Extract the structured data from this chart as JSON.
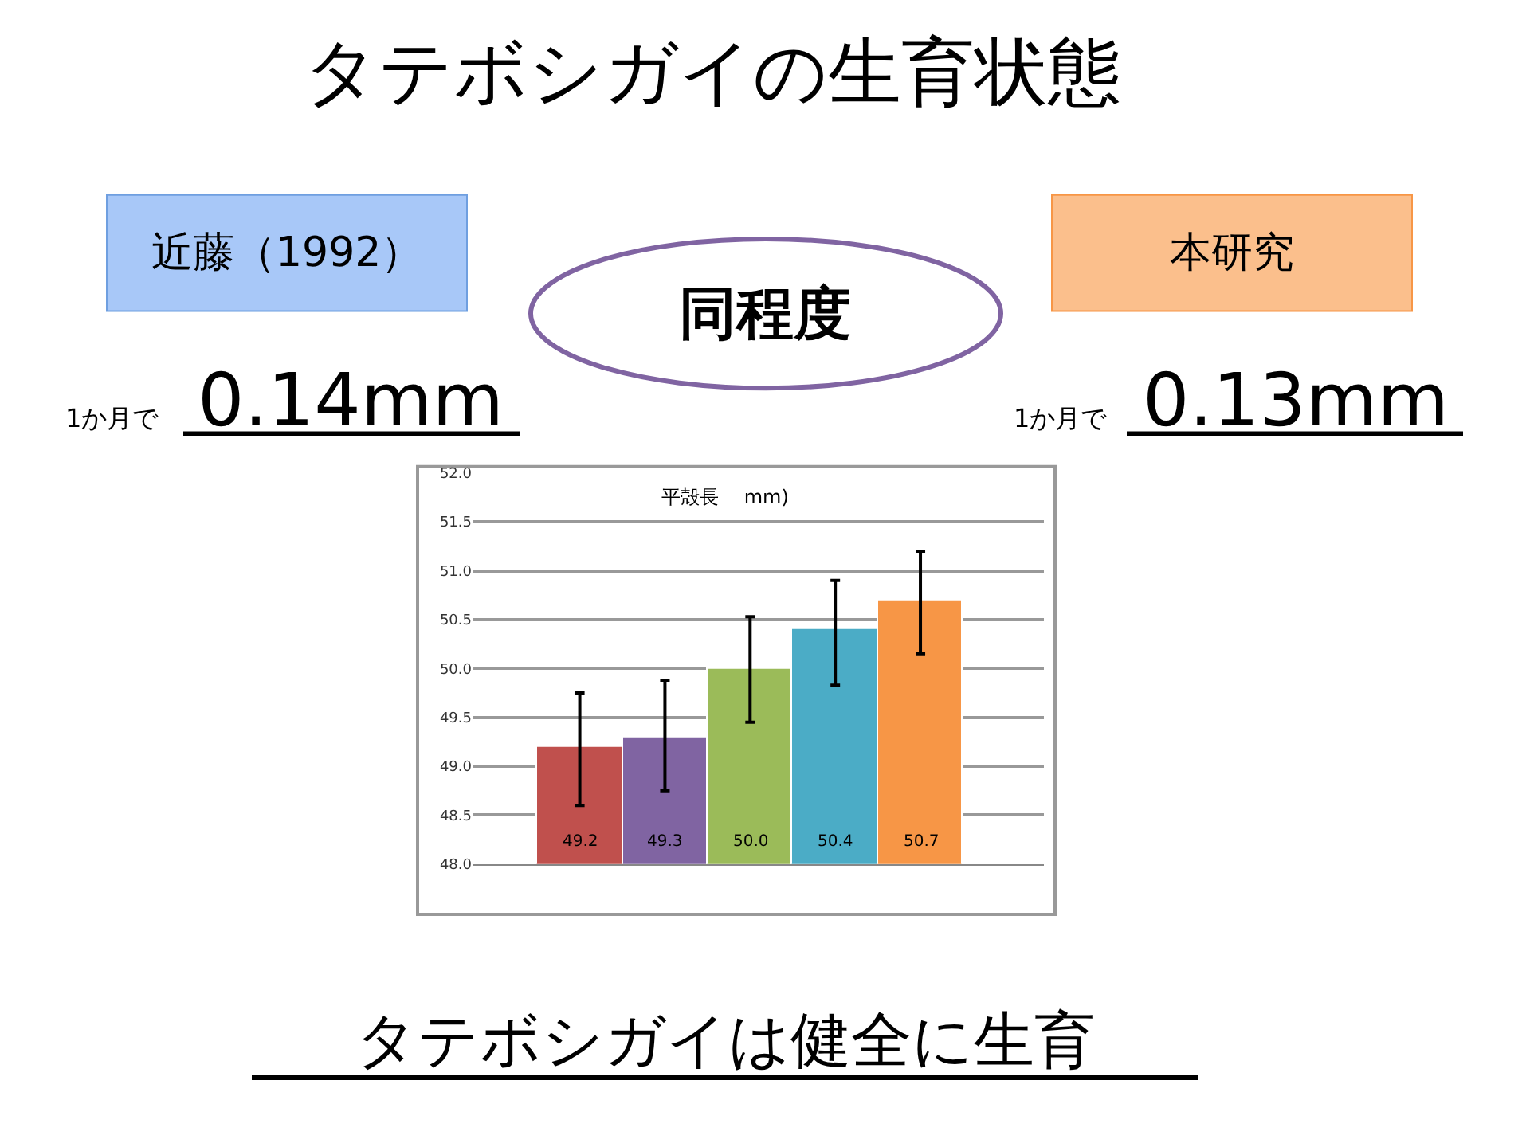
{
  "chart_data": {
    "type": "bar",
    "title": "タテボシガイの生育状態",
    "subtitle": "平殻長　 mm)",
    "categories": [
      null,
      null,
      null,
      null,
      null
    ],
    "values": [
      49.2,
      49.3,
      50.0,
      50.4,
      50.7
    ],
    "colors": [
      "#c0504d",
      "#8064a2",
      "#9bbb59",
      "#4bacc6",
      "#f79646"
    ],
    "errors": [
      [
        48.6,
        49.75
      ],
      [
        48.75,
        49.88
      ],
      [
        49.45,
        50.53
      ],
      [
        49.83,
        50.9
      ],
      [
        50.15,
        51.2
      ]
    ],
    "value_labels": [
      "49.2",
      "49.3",
      "50.0",
      "50.4",
      "50.7"
    ],
    "ylim": [
      48.0,
      52.0
    ],
    "yticks": [
      {
        "value": 48,
        "label": "48.0"
      },
      {
        "value": 48.5,
        "label": "48.5"
      },
      {
        "value": 49,
        "label": "49.0"
      },
      {
        "value": 49.5,
        "label": "49.5"
      },
      {
        "value": 50,
        "label": "50.0"
      },
      {
        "value": 50.5,
        "label": "50.5"
      },
      {
        "value": 51,
        "label": "51.0"
      },
      {
        "value": 51.5,
        "label": "51.5"
      },
      {
        "value": 52,
        "label": "52.0"
      }
    ],
    "grid": "y",
    "annotations": [
      "近藤（1992）",
      "本研究",
      "同程度",
      "1か月で",
      "0.14mm",
      "1か月で",
      "0.13mm",
      "タテボシガイは健全に生育"
    ]
  }
}
